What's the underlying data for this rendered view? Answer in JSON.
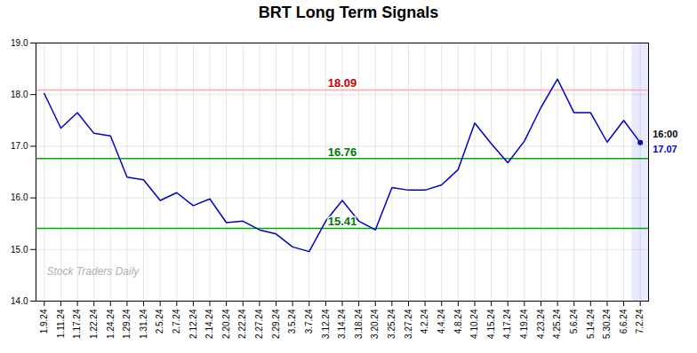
{
  "chart_data": {
    "type": "line",
    "title": "BRT Long Term Signals",
    "categories": [
      "1.9.24",
      "1.11.24",
      "1.17.24",
      "1.22.24",
      "1.24.24",
      "1.29.24",
      "1.31.24",
      "2.5.24",
      "2.7.24",
      "2.12.24",
      "2.14.24",
      "2.20.24",
      "2.22.24",
      "2.27.24",
      "2.29.24",
      "3.5.24",
      "3.7.24",
      "3.12.24",
      "3.14.24",
      "3.18.24",
      "3.20.24",
      "3.25.24",
      "3.27.24",
      "4.2.24",
      "4.4.24",
      "4.8.24",
      "4.10.24",
      "4.15.24",
      "4.17.24",
      "4.19.24",
      "4.23.24",
      "4.25.24",
      "5.6.24",
      "5.14.24",
      "5.30.24",
      "6.6.24",
      "7.2.24"
    ],
    "values": [
      18.02,
      17.35,
      17.65,
      17.25,
      17.2,
      16.4,
      16.35,
      15.95,
      16.1,
      15.85,
      15.98,
      15.52,
      15.55,
      15.38,
      15.3,
      15.05,
      14.96,
      15.55,
      15.95,
      15.55,
      15.38,
      16.2,
      16.15,
      16.15,
      16.25,
      16.55,
      17.45,
      17.05,
      16.68,
      17.1,
      17.75,
      18.3,
      17.65,
      17.65,
      17.08,
      17.5,
      17.07
    ],
    "color": "#0000cc",
    "ylim": [
      14,
      19
    ],
    "yticks": [
      14,
      15,
      16,
      17,
      18,
      19
    ],
    "grid": true,
    "hlines": [
      {
        "value": 18.09,
        "color": "#ffaaaa",
        "label_color": "#cc0000"
      },
      {
        "value": 16.76,
        "color": "#00aa00",
        "label_color": "#007700"
      },
      {
        "value": 15.41,
        "color": "#00aa00",
        "label_color": "#007700"
      }
    ],
    "annotations": [
      {
        "text": "Stock Traders Daily"
      },
      {
        "text": "16:00"
      },
      {
        "value": 17.07
      }
    ]
  }
}
